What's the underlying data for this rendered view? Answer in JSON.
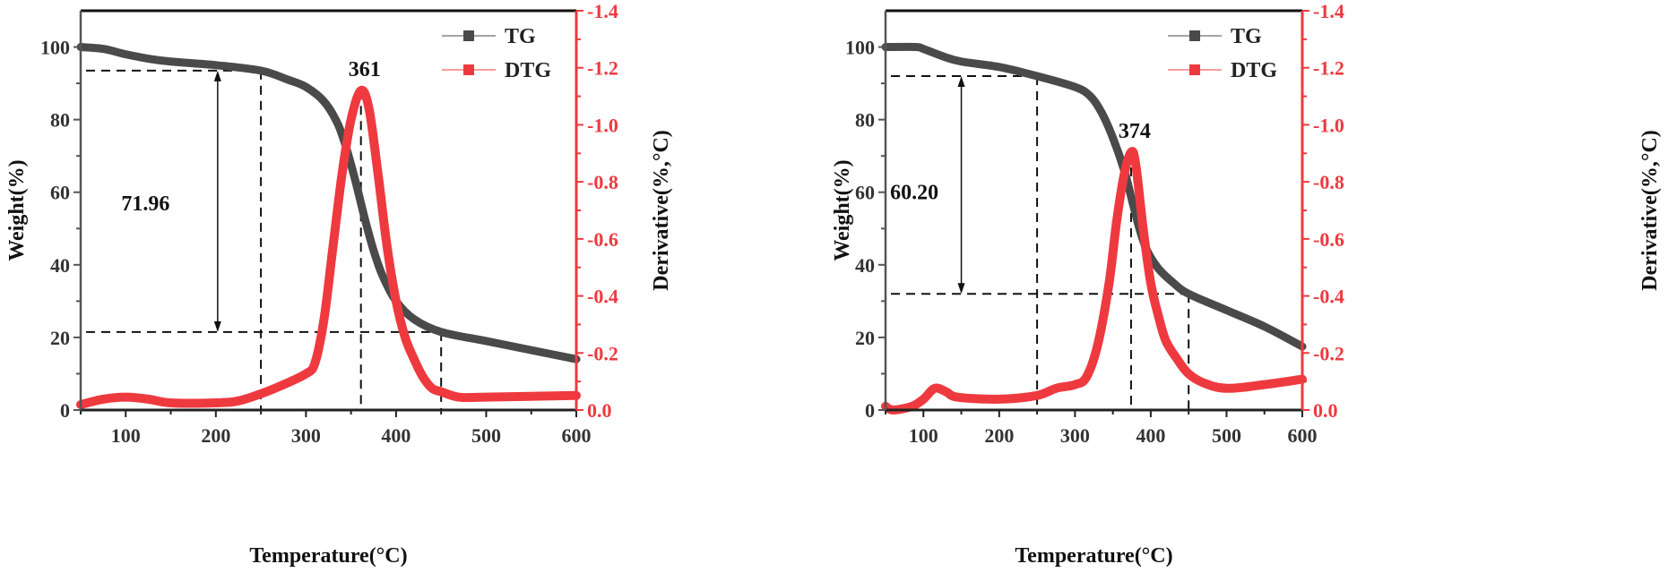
{
  "chart_data": [
    {
      "type": "line",
      "xlabel": "Temperature(°C)",
      "ylabel": "Weight(%)",
      "y2label": "Derivative(%,°C)",
      "xlim": [
        50,
        600
      ],
      "ylim": [
        0,
        110
      ],
      "y2lim": [
        0,
        -1.4
      ],
      "xticks": [
        100,
        200,
        300,
        400,
        500,
        600
      ],
      "yticks": [
        0,
        20,
        40,
        60,
        80,
        100
      ],
      "y2ticks": [
        "0.0",
        "-0.2",
        "-0.4",
        "-0.6",
        "-0.8",
        "-1.0",
        "-1.2",
        "-1.4"
      ],
      "legend": "top-right",
      "grid": false,
      "colors": {
        "TG": "#4a4a4a",
        "DTG": "#ee3a3f"
      },
      "series": [
        {
          "name": "TG",
          "axis": "left",
          "x": [
            50,
            75,
            100,
            125,
            150,
            200,
            250,
            280,
            300,
            320,
            335,
            345,
            355,
            365,
            375,
            385,
            400,
            420,
            450,
            500,
            550,
            600
          ],
          "y": [
            100,
            99.5,
            98,
            96.8,
            96,
            95,
            93.5,
            91,
            89,
            85,
            79,
            72,
            63,
            53,
            44,
            37,
            30,
            25,
            21.5,
            19,
            16.5,
            14
          ]
        },
        {
          "name": "DTG",
          "axis": "right",
          "x": [
            50,
            75,
            100,
            125,
            150,
            200,
            225,
            250,
            275,
            300,
            310,
            320,
            330,
            340,
            350,
            361,
            370,
            380,
            390,
            400,
            410,
            420,
            430,
            440,
            450,
            470,
            500,
            600
          ],
          "y": [
            -0.019,
            -0.038,
            -0.045,
            -0.038,
            -0.025,
            -0.025,
            -0.032,
            -0.057,
            -0.089,
            -0.127,
            -0.165,
            -0.318,
            -0.573,
            -0.827,
            -1.018,
            -1.12,
            -1.056,
            -0.827,
            -0.573,
            -0.382,
            -0.255,
            -0.178,
            -0.115,
            -0.076,
            -0.064,
            -0.045,
            -0.045,
            -0.051
          ]
        }
      ],
      "annotations": {
        "peak_temperature": 361,
        "peak_label": "361",
        "mass_loss_label": "71.96",
        "hlines_weight": [
          93.5,
          21.5
        ],
        "vlines_temperature": [
          250,
          361,
          450
        ]
      }
    },
    {
      "type": "line",
      "xlabel": "Temperature(°C)",
      "ylabel": "Weight(%)",
      "y2label": "Derivative(%,°C)",
      "xlim": [
        50,
        600
      ],
      "ylim": [
        0,
        110
      ],
      "y2lim": [
        0,
        -1.4
      ],
      "xticks": [
        100,
        200,
        300,
        400,
        500,
        600
      ],
      "yticks": [
        0,
        20,
        40,
        60,
        80,
        100
      ],
      "y2ticks": [
        "0.0",
        "-0.2",
        "-0.4",
        "-0.6",
        "-0.8",
        "-1.0",
        "-1.2",
        "-1.4"
      ],
      "legend": "top-right",
      "grid": false,
      "colors": {
        "TG": "#4a4a4a",
        "DTG": "#ee3a3f"
      },
      "series": [
        {
          "name": "TG",
          "axis": "left",
          "x": [
            50,
            90,
            100,
            125,
            150,
            200,
            250,
            300,
            320,
            335,
            350,
            365,
            375,
            385,
            395,
            410,
            430,
            450,
            500,
            550,
            600
          ],
          "y": [
            100,
            100,
            99.5,
            97.5,
            96,
            94.5,
            92,
            89,
            86.5,
            82,
            75,
            66,
            58,
            50,
            44,
            39,
            35,
            32,
            27.5,
            23,
            17.5
          ]
        },
        {
          "name": "DTG",
          "axis": "right",
          "x": [
            50,
            60,
            85,
            100,
            115,
            130,
            145,
            200,
            250,
            275,
            300,
            315,
            330,
            345,
            355,
            365,
            374,
            380,
            390,
            400,
            410,
            420,
            435,
            450,
            470,
            500,
            550,
            600
          ],
          "y": [
            -0.013,
            0,
            -0.013,
            -0.038,
            -0.076,
            -0.064,
            -0.045,
            -0.038,
            -0.051,
            -0.076,
            -0.089,
            -0.115,
            -0.229,
            -0.445,
            -0.662,
            -0.827,
            -0.904,
            -0.865,
            -0.636,
            -0.445,
            -0.331,
            -0.242,
            -0.178,
            -0.127,
            -0.095,
            -0.076,
            -0.089,
            -0.108
          ]
        }
      ],
      "annotations": {
        "peak_temperature": 374,
        "peak_label": "374",
        "mass_loss_label": "60.20",
        "hlines_weight": [
          92,
          32
        ],
        "vlines_temperature": [
          250,
          374,
          450
        ]
      }
    }
  ]
}
